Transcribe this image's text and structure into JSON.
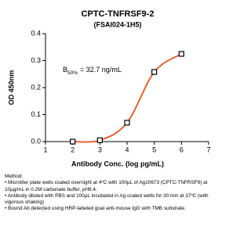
{
  "chart_data": {
    "type": "line",
    "title": "CPTC-TNFRSF9-2",
    "subtitle": "(FSAI024-1H5)",
    "xlabel": "Antibody Conc. (log pg/mL)",
    "ylabel": "OD 450nm",
    "x": [
      2,
      3,
      4,
      5,
      6
    ],
    "series": [
      {
        "color": "#e8622c",
        "values": [
          0.0,
          0.005,
          0.07,
          0.258,
          0.325
        ]
      }
    ],
    "xlim": [
      1,
      7
    ],
    "xticks": [
      1,
      2,
      3,
      4,
      5,
      6,
      7
    ],
    "ylim": [
      0,
      0.4
    ],
    "yticks": [
      {
        "value": 0,
        "label": "0.0"
      },
      0.1,
      0.2,
      0.3,
      0.4
    ],
    "annotation": {
      "main": "B",
      "sub": "50%",
      "rest": "= 32.7 ng/mL"
    }
  },
  "method": {
    "heading": "Method:",
    "items": [
      "Microtiter plate wells coated overnight at 4ºC  with 100µL of Ag10673 (CPTC-TNFRSF9) at 10µg/mL in 0.2M carbonate buffer, pH9.4.",
      "Antibody diluted with PBS and 100µL incubated in Ag coated wells for 30 min at 37ºC (with vigorous shaking)",
      "Bound Ab detected using HRP-labeled goat anti-mouse IgG with TMB substrate."
    ]
  }
}
